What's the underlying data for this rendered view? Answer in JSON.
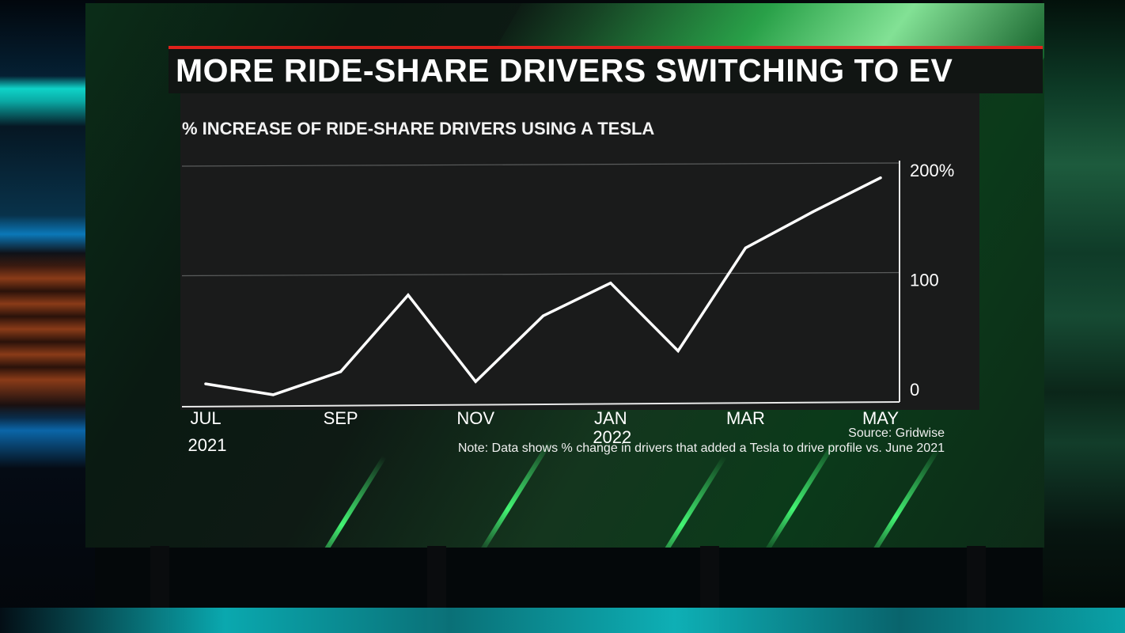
{
  "headline": "MORE RIDE-SHARE DRIVERS SWITCHING TO EV",
  "colors": {
    "accent_red": "#e0221b",
    "line": "#ffffff",
    "panel": "#1a1b1b",
    "glow_green": "#3cff6e"
  },
  "chart_data": {
    "type": "line",
    "title": "% INCREASE OF RIDE-SHARE DRIVERS USING A TESLA",
    "xlabel": "",
    "ylabel": "",
    "x": [
      "2021-07",
      "2021-08",
      "2021-09",
      "2021-10",
      "2021-11",
      "2021-12",
      "2022-01",
      "2022-02",
      "2022-03",
      "2022-04",
      "2022-05"
    ],
    "series": [
      {
        "values": [
          5,
          -5,
          16,
          86,
          7,
          67,
          97,
          35,
          129,
          162,
          193
        ]
      }
    ],
    "x_tick_labels": [
      {
        "x": "2021-07",
        "label": "JUL",
        "year": "2021"
      },
      {
        "x": "2021-09",
        "label": "SEP"
      },
      {
        "x": "2021-11",
        "label": "NOV"
      },
      {
        "x": "2022-01",
        "label": "JAN",
        "year": "2022"
      },
      {
        "x": "2022-03",
        "label": "MAR"
      },
      {
        "x": "2022-05",
        "label": "MAY"
      }
    ],
    "y_ticks": [
      {
        "value": 0,
        "label": "0"
      },
      {
        "value": 100,
        "label": "100"
      },
      {
        "value": 200,
        "label": "200%"
      }
    ],
    "ylim": [
      -15,
      200
    ],
    "grid": true,
    "legend": "none"
  },
  "source": "Source: Gridwise",
  "note": "Note: Data shows % change in drivers that added a Tesla to drive profile vs. June 2021"
}
